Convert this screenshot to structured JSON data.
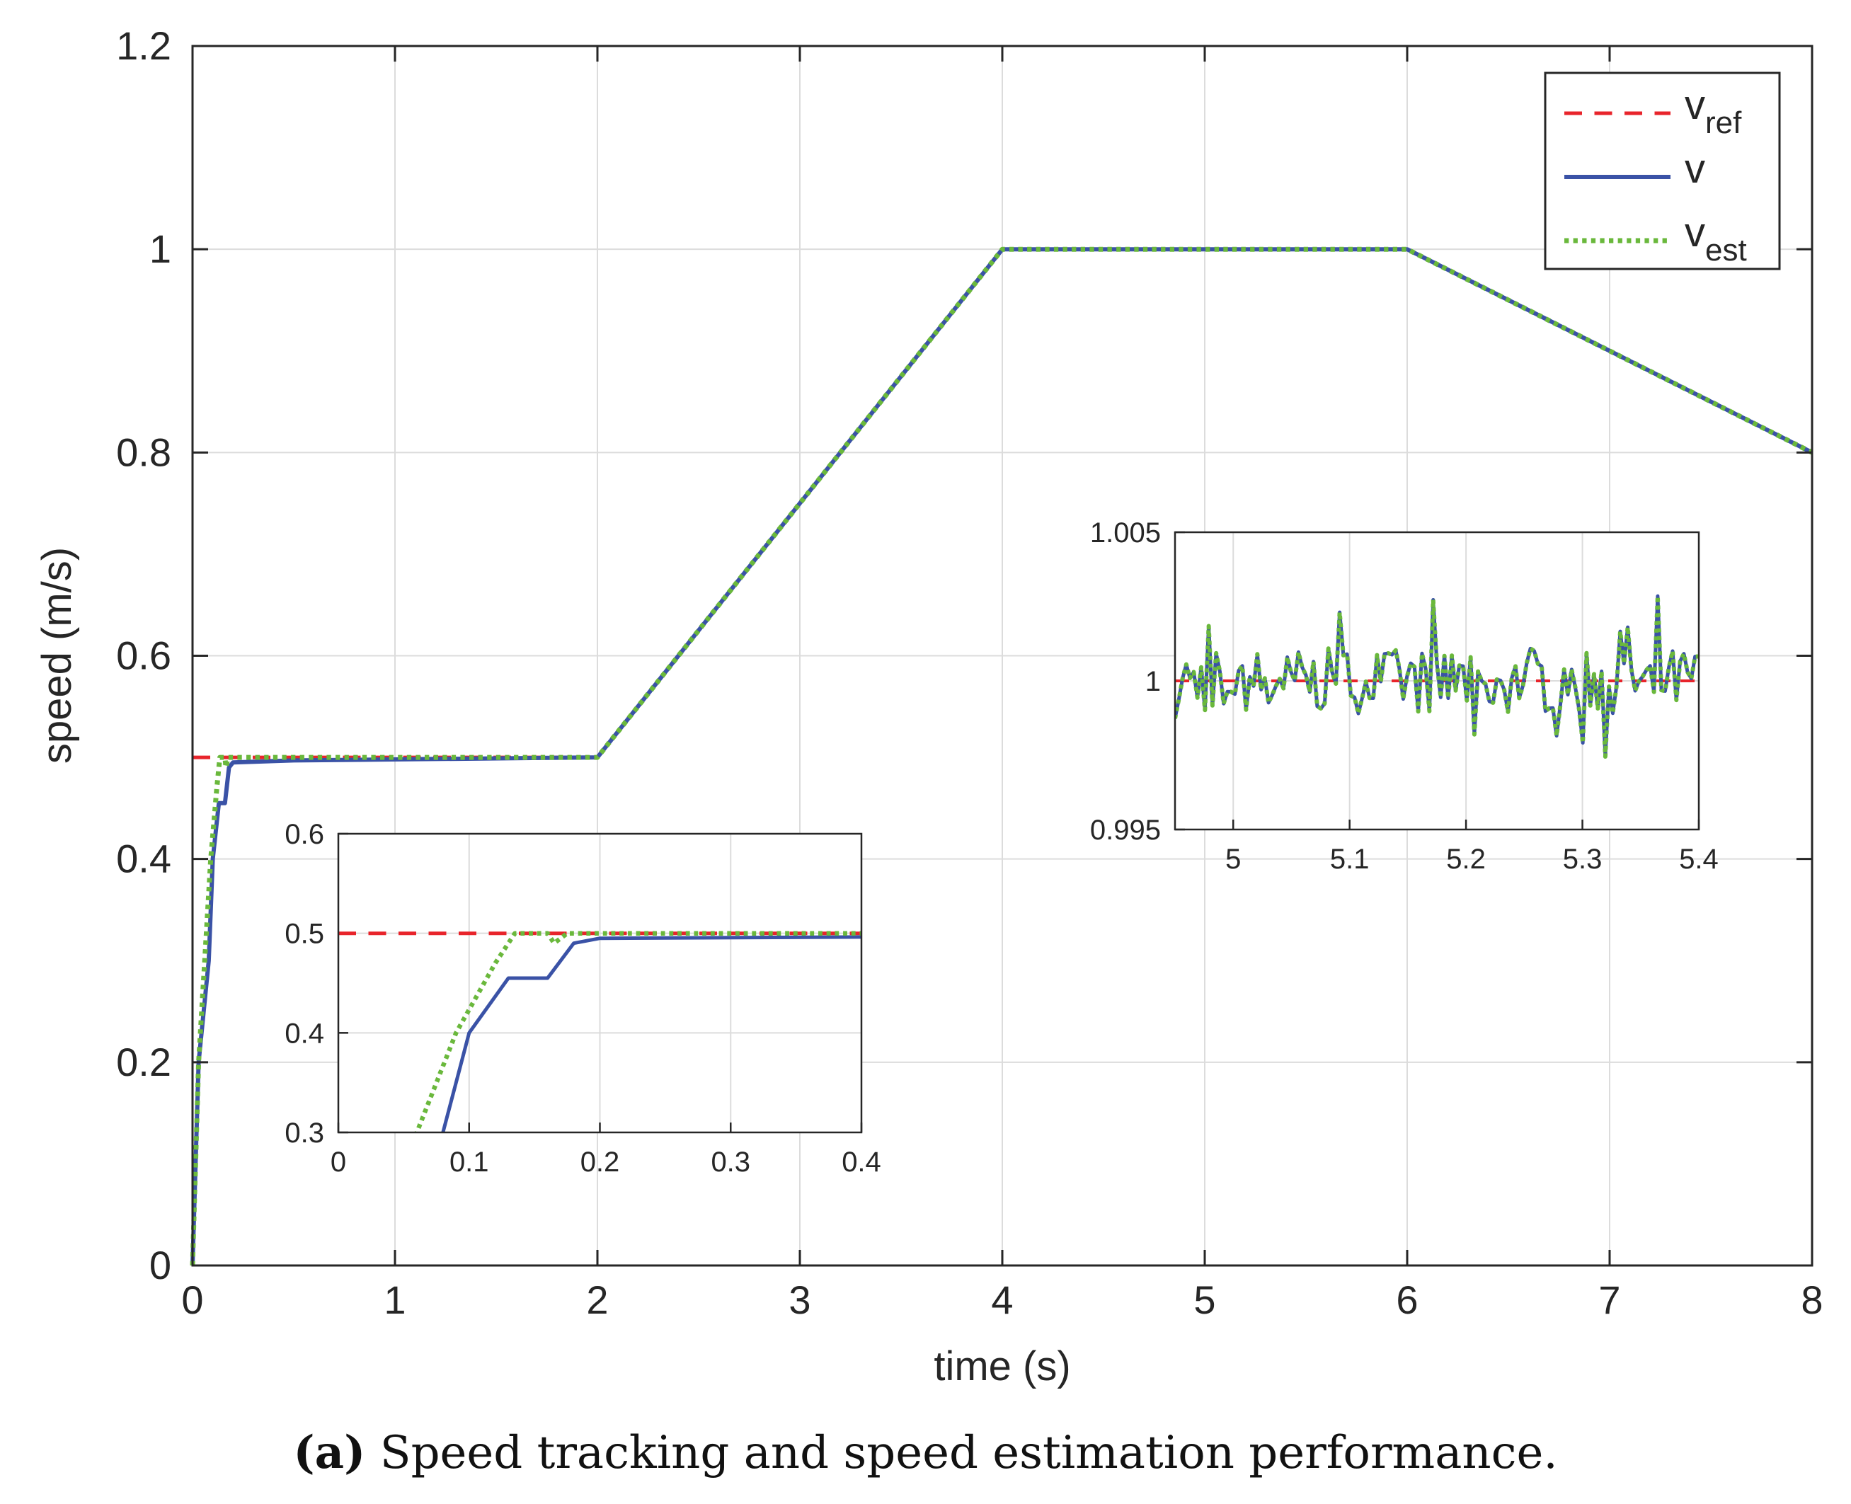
{
  "chart_data": {
    "type": "line",
    "xlabel": "time (s)",
    "ylabel": "speed (m/s)",
    "xlim": [
      0,
      8
    ],
    "ylim": [
      0,
      1.2
    ],
    "xticks": [
      "0",
      "1",
      "2",
      "3",
      "4",
      "5",
      "6",
      "7",
      "8"
    ],
    "yticks": [
      "0",
      "0.2",
      "0.4",
      "0.6",
      "0.8",
      "1",
      "1.2"
    ],
    "grid": true,
    "legend": {
      "position": "top-right",
      "entries": [
        {
          "symbol": "v",
          "sub": "ref",
          "style": "dashed",
          "color": "#e8242b"
        },
        {
          "symbol": "v",
          "sub": "",
          "style": "solid",
          "color": "#3a52a6"
        },
        {
          "symbol": "v",
          "sub": "est",
          "style": "dotted",
          "color": "#6ab83c"
        }
      ]
    },
    "series": [
      {
        "name": "v_ref",
        "color": "#e8242b",
        "style": "dashed",
        "x": [
          0,
          2,
          4,
          6,
          8
        ],
        "y": [
          0.5,
          0.5,
          1.0,
          1.0,
          0.8
        ]
      },
      {
        "name": "v",
        "color": "#3a52a6",
        "style": "solid",
        "x": [
          0,
          0.03,
          0.08,
          0.1,
          0.13,
          0.16,
          0.18,
          0.2,
          0.5,
          2,
          4,
          6,
          8
        ],
        "y": [
          0.0,
          0.2,
          0.3,
          0.4,
          0.455,
          0.455,
          0.49,
          0.495,
          0.497,
          0.5,
          1.0,
          1.0,
          0.8
        ]
      },
      {
        "name": "v_est",
        "color": "#6ab83c",
        "style": "dotted",
        "x": [
          0,
          0.03,
          0.06,
          0.09,
          0.12,
          0.135,
          0.16,
          0.165,
          0.175,
          0.2,
          2,
          4,
          6,
          8
        ],
        "y": [
          0.0,
          0.2,
          0.3,
          0.4,
          0.47,
          0.5,
          0.5,
          0.49,
          0.5,
          0.5,
          0.5,
          1.0,
          1.0,
          0.8
        ]
      }
    ],
    "insets": [
      {
        "name": "startup-zoom",
        "xlim": [
          0,
          0.4
        ],
        "ylim": [
          0.3,
          0.6
        ],
        "xticks": [
          "0",
          "0.1",
          "0.2",
          "0.3",
          "0.4"
        ],
        "yticks": [
          "0.3",
          "0.4",
          "0.5",
          "0.6"
        ]
      },
      {
        "name": "steady-zoom",
        "xlim": [
          4.95,
          5.4
        ],
        "ylim": [
          0.995,
          1.005
        ],
        "xticks": [
          "5",
          "5.1",
          "5.2",
          "5.3",
          "5.4"
        ],
        "yticks": [
          "0.995",
          "1",
          "1.005"
        ]
      }
    ]
  },
  "caption": {
    "label": "(a)",
    "text": "Speed tracking and speed estimation performance."
  }
}
